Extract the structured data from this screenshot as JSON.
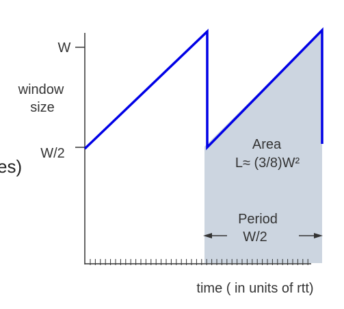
{
  "labels": {
    "w": "W",
    "window_size_line1": "window",
    "window_size_line2": "size",
    "w_half": "W/2",
    "clipped_text": "es)",
    "area_line1": "Area",
    "area_line2": "L≈ (3/8)W²",
    "period_line1": "Period",
    "period_line2": "W/2",
    "x_axis": "time ( in units of rtt)"
  },
  "colors": {
    "sawtooth": "#0000e6",
    "shaded_area": "#ccd5e0",
    "axis": "#333333",
    "text": "#333333"
  },
  "diagram": {
    "type": "sawtooth",
    "description_values": {
      "window_max": "W",
      "window_min": "W/2"
    }
  }
}
